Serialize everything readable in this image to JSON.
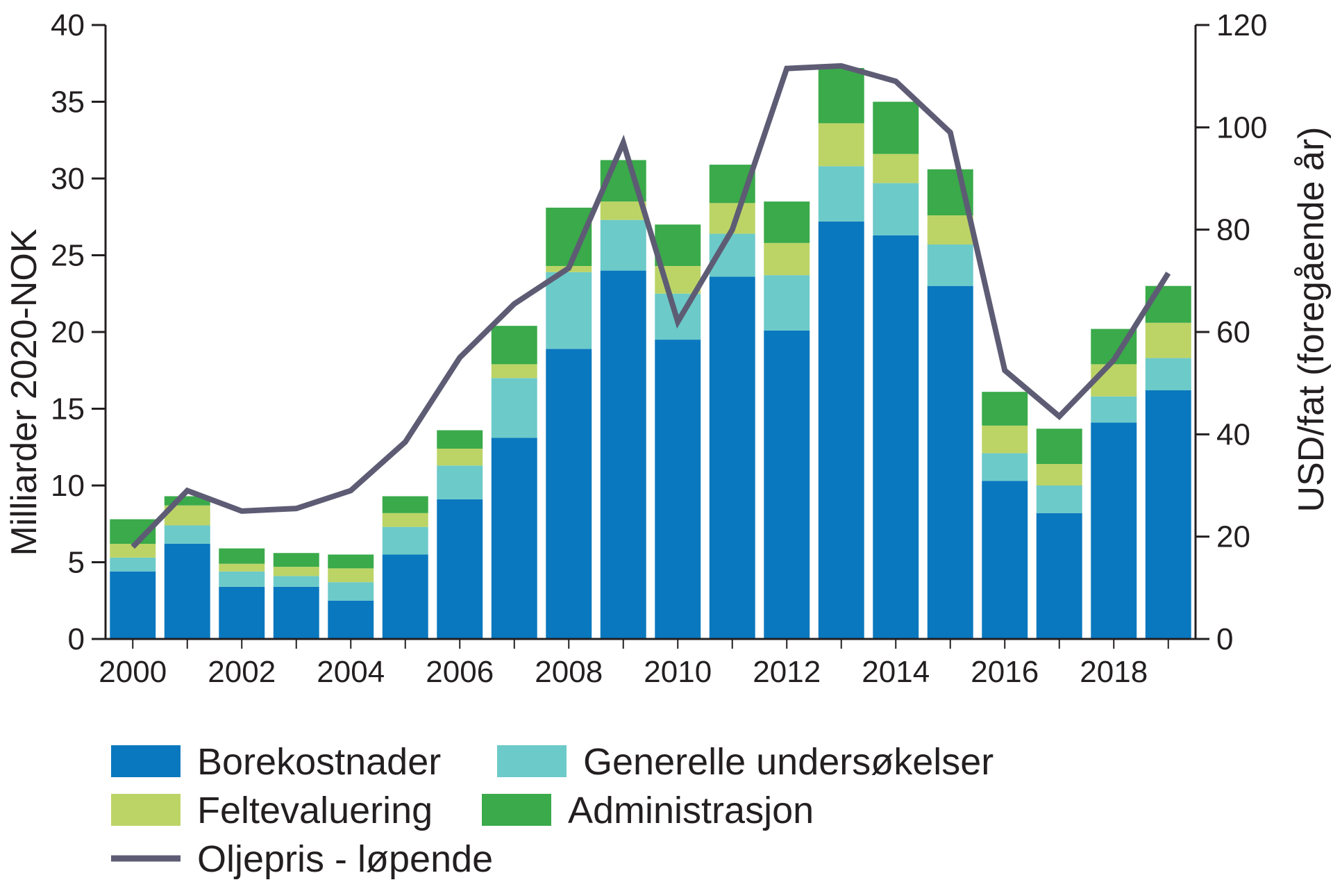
{
  "chart_data": {
    "type": "bar",
    "stacked": true,
    "categories": [
      "2000",
      "2001",
      "2002",
      "2003",
      "2004",
      "2005",
      "2006",
      "2007",
      "2008",
      "2009",
      "2010",
      "2011",
      "2012",
      "2013",
      "2014",
      "2015",
      "2016",
      "2017",
      "2018",
      "2019"
    ],
    "x_tick_labels": [
      "2000",
      "2002",
      "2004",
      "2006",
      "2008",
      "2010",
      "2012",
      "2014",
      "2016",
      "2018"
    ],
    "ylabel": "Milliarder 2020-NOK",
    "ylim": [
      0,
      40
    ],
    "y_ticks": [
      0,
      5,
      10,
      15,
      20,
      25,
      30,
      35,
      40
    ],
    "y2label": "USD/fat (foregående år)",
    "y2lim": [
      0,
      120
    ],
    "y2_ticks": [
      0,
      20,
      40,
      60,
      80,
      100,
      120
    ],
    "grid": false,
    "legend_position": "bottom",
    "series": [
      {
        "name": "Borekostnader",
        "color": "#0a78be",
        "values": [
          4.4,
          6.2,
          3.4,
          3.4,
          2.5,
          5.5,
          9.1,
          13.1,
          18.9,
          24.0,
          19.5,
          23.6,
          20.1,
          27.2,
          26.3,
          23.0,
          10.3,
          8.2,
          14.1,
          16.2
        ]
      },
      {
        "name": "Generelle undersøkelser",
        "color": "#6ccac9",
        "values": [
          0.9,
          1.2,
          1.0,
          0.7,
          1.2,
          1.8,
          2.2,
          3.9,
          5.0,
          3.3,
          3.0,
          2.8,
          3.6,
          3.6,
          3.4,
          2.7,
          1.8,
          1.8,
          1.7,
          2.1
        ]
      },
      {
        "name": "Feltevaluering",
        "color": "#bcd466",
        "values": [
          0.9,
          1.3,
          0.5,
          0.6,
          0.9,
          0.9,
          1.1,
          0.9,
          0.4,
          1.2,
          1.8,
          2.0,
          2.1,
          2.8,
          1.9,
          1.9,
          1.8,
          1.4,
          2.1,
          2.3
        ]
      },
      {
        "name": "Administrasjon",
        "color": "#3aaa4a",
        "values": [
          1.6,
          0.6,
          1.0,
          0.9,
          0.9,
          1.1,
          1.2,
          2.5,
          3.8,
          2.7,
          2.7,
          2.5,
          2.7,
          3.6,
          3.4,
          3.0,
          2.2,
          2.3,
          2.3,
          2.4
        ]
      }
    ],
    "line_series": {
      "name": "Oljepris - løpende",
      "axis": "right",
      "color": "#5d5c74",
      "values": [
        18,
        29,
        25,
        25.5,
        29,
        38.5,
        55,
        65.5,
        72.5,
        97,
        62,
        80,
        111.5,
        112,
        109,
        99,
        52.5,
        43.5,
        54.5,
        71.5
      ]
    }
  }
}
